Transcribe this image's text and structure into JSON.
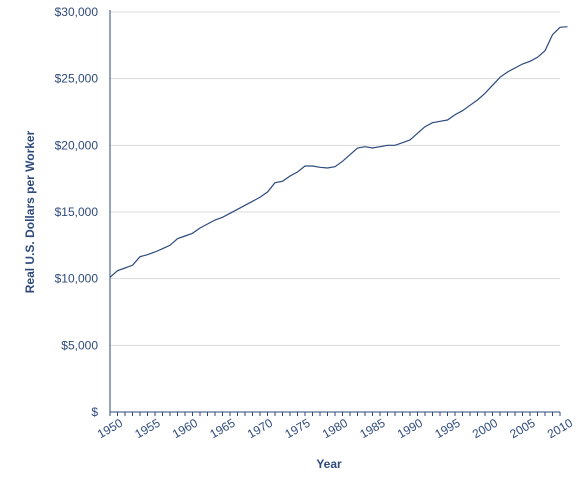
{
  "chart_data": {
    "type": "line",
    "title": "",
    "xlabel": "Year",
    "ylabel": "Real U.S. Dollars per Worker",
    "xlim": [
      1950,
      2010
    ],
    "ylim": [
      0,
      30000
    ],
    "y_ticks": [
      0,
      5000,
      10000,
      15000,
      20000,
      25000,
      30000
    ],
    "y_tick_labels": [
      "$",
      "$5,000",
      "$10,000",
      "$15,000",
      "$20,000",
      "$25,000",
      "$30,000"
    ],
    "x_ticks": [
      1950,
      1955,
      1960,
      1965,
      1970,
      1975,
      1980,
      1985,
      1990,
      1995,
      2000,
      2005,
      2010
    ],
    "x_tick_labels": [
      "1950",
      "1955",
      "1960",
      "1965",
      "1970",
      "1975",
      "1980",
      "1985",
      "1990",
      "1995",
      "2000",
      "2005",
      "2010"
    ],
    "grid": true,
    "series": [
      {
        "color": "#2e4a7d",
        "x": [
          1950,
          1951,
          1952,
          1953,
          1954,
          1955,
          1956,
          1957,
          1958,
          1959,
          1960,
          1961,
          1962,
          1963,
          1964,
          1965,
          1966,
          1967,
          1968,
          1969,
          1970,
          1971,
          1972,
          1973,
          1974,
          1975,
          1976,
          1977,
          1978,
          1979,
          1980,
          1981,
          1982,
          1983,
          1984,
          1985,
          1986,
          1987,
          1988,
          1989,
          1990,
          1991,
          1992,
          1993,
          1994,
          1995,
          1996,
          1997,
          1998,
          1999,
          2000,
          2001,
          2002,
          2003,
          2004,
          2005,
          2006,
          2007,
          2008,
          2009,
          2010,
          2011
        ],
        "values": [
          10100,
          10600,
          10800,
          11000,
          11650,
          11800,
          12000,
          12250,
          12500,
          13000,
          13200,
          13400,
          13800,
          14100,
          14400,
          14600,
          14900,
          15200,
          15500,
          15800,
          16100,
          16500,
          17200,
          17300,
          17700,
          18000,
          18450,
          18450,
          18350,
          18300,
          18400,
          18800,
          19300,
          19800,
          19900,
          19800,
          19900,
          20000,
          20000,
          20200,
          20400,
          20900,
          21400,
          21700,
          21800,
          21900,
          22300,
          22600,
          23000,
          23400,
          23900,
          24500,
          25100,
          25500,
          25800,
          26100,
          26300,
          26600,
          27100,
          28300,
          28850,
          28900
        ]
      }
    ]
  }
}
